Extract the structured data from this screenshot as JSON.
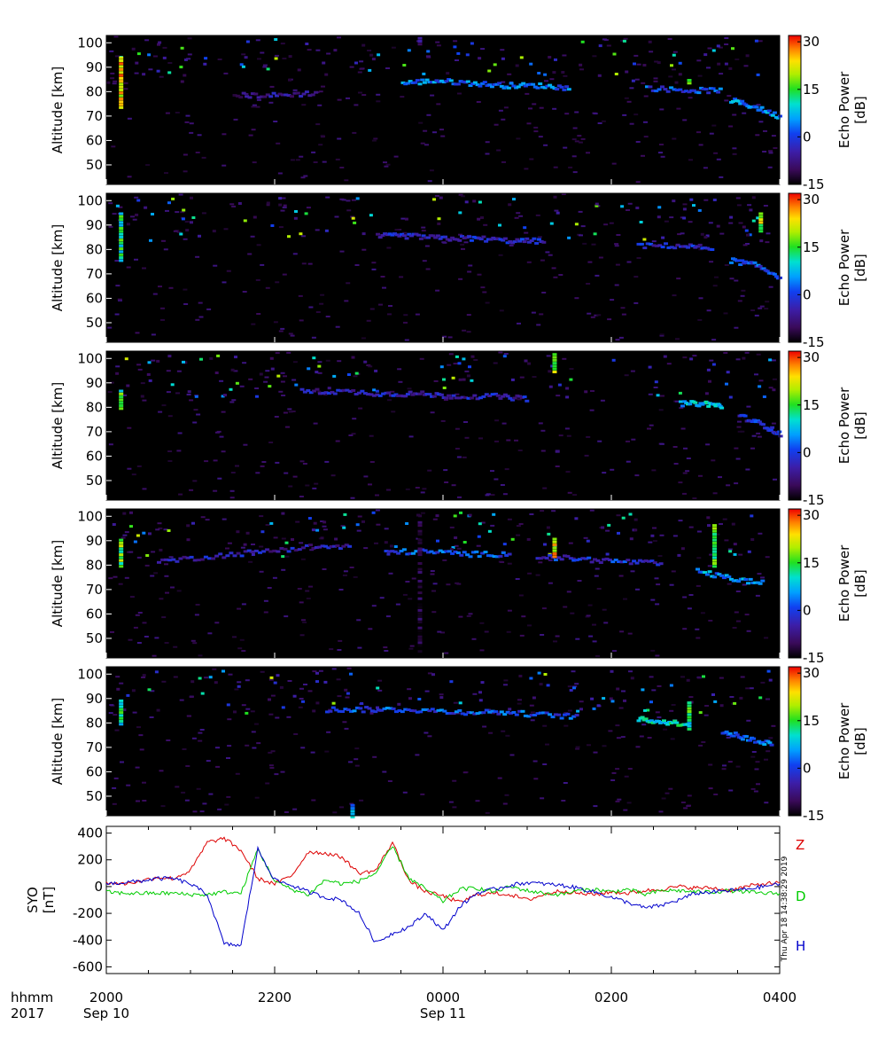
{
  "chart_data": [
    {
      "type": "heatmap",
      "panel": 1,
      "ylabel": "Altitude [km]",
      "yticks": [
        50,
        60,
        70,
        80,
        90,
        100
      ],
      "ylim": [
        42,
        103
      ],
      "colorbar": {
        "label": "Echo Power",
        "unit": "[dB]",
        "range": [
          -15,
          32
        ],
        "ticks": [
          "30",
          "15",
          "0",
          "-15"
        ]
      },
      "echo_layers": [
        {
          "x": [
            21.5,
            22.0,
            22.5
          ],
          "y": [
            79,
            79,
            80
          ],
          "level": -7
        },
        {
          "x": [
            23.5,
            23.9,
            24.3,
            24.7,
            25.1,
            25.5
          ],
          "y": [
            84,
            85,
            84,
            83,
            83,
            82
          ],
          "level": 3
        },
        {
          "x": [
            26.4,
            26.9,
            27.3
          ],
          "y": [
            82,
            81,
            81
          ],
          "level": 1
        },
        {
          "x": [
            27.4,
            27.7,
            28.0
          ],
          "y": [
            77,
            74,
            70
          ],
          "level": 4
        }
      ],
      "strong_echoes": [
        {
          "x": 20.15,
          "y": [
            74,
            95
          ],
          "level": 30
        },
        {
          "x": 23.7,
          "y": [
            100,
            103
          ],
          "level": 0
        },
        {
          "x": 26.9,
          "y": [
            84,
            86
          ],
          "level": 25
        }
      ]
    },
    {
      "type": "heatmap",
      "panel": 2,
      "ylabel": "Altitude [km]",
      "yticks": [
        50,
        60,
        70,
        80,
        90,
        100
      ],
      "ylim": [
        42,
        103
      ],
      "colorbar": {
        "label": "Echo Power",
        "unit": "[dB]",
        "range": [
          -15,
          32
        ],
        "ticks": [
          "30",
          "15",
          "0",
          "-15"
        ]
      },
      "echo_layers": [
        {
          "x": [
            23.2,
            23.6,
            24.0,
            24.4,
            24.8,
            25.2
          ],
          "y": [
            86,
            86,
            85,
            85,
            84,
            84
          ],
          "level": -3
        },
        {
          "x": [
            26.3,
            26.8,
            27.2
          ],
          "y": [
            82,
            82,
            81
          ],
          "level": -3
        },
        {
          "x": [
            27.4,
            27.7,
            28.0
          ],
          "y": [
            76,
            74,
            69
          ],
          "level": 1
        }
      ],
      "strong_echoes": [
        {
          "x": 20.15,
          "y": [
            76,
            96
          ],
          "level": 18
        },
        {
          "x": 27.75,
          "y": [
            88,
            96
          ],
          "level": 25
        }
      ]
    },
    {
      "type": "heatmap",
      "panel": 3,
      "ylabel": "Altitude [km]",
      "yticks": [
        50,
        60,
        70,
        80,
        90,
        100
      ],
      "ylim": [
        42,
        103
      ],
      "colorbar": {
        "label": "Echo Power",
        "unit": "[dB]",
        "range": [
          -15,
          32
        ],
        "ticks": [
          "30",
          "15",
          "0",
          "-15"
        ]
      },
      "echo_layers": [
        {
          "x": [
            22.3,
            22.8,
            23.3,
            23.7,
            24.1,
            24.6,
            25.0
          ],
          "y": [
            87,
            87,
            86,
            86,
            85,
            85,
            84
          ],
          "level": -4
        },
        {
          "x": [
            26.8,
            27.1,
            27.3
          ],
          "y": [
            82,
            82,
            81
          ],
          "level": 8
        },
        {
          "x": [
            27.5,
            27.8,
            28.0
          ],
          "y": [
            77,
            73,
            69
          ],
          "level": -2
        }
      ],
      "strong_echoes": [
        {
          "x": 20.15,
          "y": [
            80,
            88
          ],
          "level": 20
        },
        {
          "x": 25.3,
          "y": [
            95,
            103
          ],
          "level": 25
        }
      ]
    },
    {
      "type": "heatmap",
      "panel": 4,
      "ylabel": "Altitude [km]",
      "yticks": [
        50,
        60,
        70,
        80,
        90,
        100
      ],
      "ylim": [
        42,
        103
      ],
      "colorbar": {
        "label": "Echo Power",
        "unit": "[dB]",
        "range": [
          -15,
          32
        ],
        "ticks": [
          "30",
          "15",
          "0",
          "-15"
        ]
      },
      "echo_layers": [
        {
          "x": [
            20.6,
            21.2,
            21.8,
            22.4,
            22.9
          ],
          "y": [
            82,
            84,
            86,
            88,
            88
          ],
          "level": -5
        },
        {
          "x": [
            23.3,
            23.8,
            24.3,
            24.8
          ],
          "y": [
            86,
            86,
            85,
            85
          ],
          "level": 1
        },
        {
          "x": [
            25.1,
            25.6,
            26.1,
            26.6
          ],
          "y": [
            84,
            83,
            82,
            81
          ],
          "level": -2
        },
        {
          "x": [
            27.0,
            27.4,
            27.8
          ],
          "y": [
            78,
            75,
            73
          ],
          "level": 5
        }
      ],
      "strong_echoes": [
        {
          "x": 20.15,
          "y": [
            80,
            92
          ],
          "level": 22
        },
        {
          "x": 25.3,
          "y": [
            84,
            92
          ],
          "level": 30
        },
        {
          "x": 27.2,
          "y": [
            80,
            98
          ],
          "level": 20
        },
        {
          "x": 23.7,
          "y": [
            44,
            100
          ],
          "level": -8
        }
      ]
    },
    {
      "type": "heatmap",
      "panel": 5,
      "ylabel": "Altitude [km]",
      "yticks": [
        50,
        60,
        70,
        80,
        90,
        100
      ],
      "ylim": [
        42,
        103
      ],
      "colorbar": {
        "label": "Echo Power",
        "unit": "[dB]",
        "range": [
          -15,
          32
        ],
        "ticks": [
          "30",
          "15",
          "0",
          "-15"
        ]
      },
      "echo_layers": [
        {
          "x": [
            22.6,
            23.1,
            23.6,
            24.1,
            24.6,
            25.1,
            25.6
          ],
          "y": [
            86,
            86,
            86,
            85,
            85,
            84,
            83
          ],
          "level": 1
        },
        {
          "x": [
            26.3,
            26.6,
            26.9
          ],
          "y": [
            82,
            81,
            80
          ],
          "level": 10
        },
        {
          "x": [
            27.3,
            27.6,
            27.9
          ],
          "y": [
            77,
            74,
            72
          ],
          "level": 3
        }
      ],
      "strong_echoes": [
        {
          "x": 20.15,
          "y": [
            80,
            90
          ],
          "level": 18
        },
        {
          "x": 26.9,
          "y": [
            78,
            90
          ],
          "level": 18
        },
        {
          "x": 22.9,
          "y": [
            42,
            48
          ],
          "level": 12
        }
      ]
    },
    {
      "type": "line",
      "ylabel": "SYO",
      "yunit": "[nT]",
      "yticks": [
        -600,
        -400,
        -200,
        0,
        200,
        400
      ],
      "ylim": [
        -650,
        450
      ],
      "series": [
        {
          "name": "Z",
          "color": "#dd0000",
          "x": [
            20.0,
            20.2,
            20.4,
            20.6,
            20.8,
            21.0,
            21.2,
            21.4,
            21.6,
            21.8,
            22.0,
            22.2,
            22.4,
            22.6,
            22.8,
            23.0,
            23.2,
            23.4,
            23.6,
            23.8,
            24.0,
            24.2,
            24.4,
            24.6,
            24.8,
            25.0,
            25.2,
            25.4,
            25.6,
            25.8,
            26.0,
            26.2,
            26.4,
            26.6,
            26.8,
            27.0,
            27.2,
            27.4,
            27.6,
            27.8,
            28.0
          ],
          "y": [
            30,
            20,
            40,
            70,
            60,
            120,
            330,
            360,
            270,
            60,
            20,
            80,
            260,
            250,
            220,
            100,
            120,
            330,
            40,
            -40,
            -70,
            -120,
            -60,
            -50,
            -60,
            -100,
            -60,
            -30,
            -50,
            -60,
            -40,
            -50,
            -30,
            -20,
            0,
            -10,
            -10,
            -30,
            0,
            20,
            30
          ]
        },
        {
          "name": "D",
          "color": "#00cc00",
          "x": [
            20.0,
            20.2,
            20.4,
            20.6,
            20.8,
            21.0,
            21.2,
            21.4,
            21.6,
            21.8,
            22.0,
            22.2,
            22.4,
            22.6,
            22.8,
            23.0,
            23.2,
            23.4,
            23.6,
            23.8,
            24.0,
            24.2,
            24.4,
            24.6,
            24.8,
            25.0,
            25.2,
            25.4,
            25.6,
            25.8,
            26.0,
            26.2,
            26.4,
            26.6,
            26.8,
            27.0,
            27.2,
            27.4,
            27.6,
            27.8,
            28.0
          ],
          "y": [
            -40,
            -50,
            -50,
            -50,
            -50,
            -60,
            -60,
            -40,
            -50,
            280,
            40,
            -20,
            -60,
            50,
            20,
            40,
            100,
            300,
            60,
            -20,
            -110,
            -20,
            -10,
            -40,
            0,
            -30,
            -50,
            -60,
            -30,
            -20,
            -40,
            -20,
            -60,
            -30,
            -30,
            -40,
            -40,
            -30,
            -40,
            -50,
            -50
          ]
        },
        {
          "name": "H",
          "color": "#0000cc",
          "x": [
            20.0,
            20.2,
            20.4,
            20.6,
            20.8,
            21.0,
            21.2,
            21.4,
            21.6,
            21.8,
            22.0,
            22.2,
            22.4,
            22.6,
            22.8,
            23.0,
            23.2,
            23.4,
            23.6,
            23.8,
            24.0,
            24.2,
            24.4,
            24.6,
            24.8,
            25.0,
            25.2,
            25.4,
            25.6,
            25.8,
            26.0,
            26.2,
            26.4,
            26.6,
            26.8,
            27.0,
            27.2,
            27.4,
            27.6,
            27.8,
            28.0
          ],
          "y": [
            20,
            30,
            40,
            60,
            60,
            20,
            -60,
            -430,
            -440,
            280,
            50,
            10,
            -40,
            -80,
            -100,
            -200,
            -420,
            -350,
            -300,
            -200,
            -330,
            -150,
            -50,
            -20,
            10,
            30,
            20,
            10,
            -10,
            -40,
            -80,
            -120,
            -160,
            -140,
            -100,
            -50,
            -40,
            -30,
            -20,
            0,
            20
          ]
        }
      ]
    }
  ],
  "xaxis": {
    "xlim": [
      20,
      28
    ],
    "major_ticks": [
      20,
      22,
      24,
      26,
      28
    ],
    "minor_ticks": [
      20.5,
      21,
      21.5,
      22.5,
      23,
      23.5,
      24.5,
      25,
      25.5,
      26.5,
      27,
      27.5
    ],
    "tick_labels": [
      "2000",
      "2200",
      "0000",
      "0200",
      "0400"
    ],
    "date_labels": [
      {
        "x": 20,
        "text": "Sep 10"
      },
      {
        "x": 24,
        "text": "Sep 11"
      }
    ],
    "row_labels": [
      "hhmm",
      "2017"
    ]
  },
  "timestamp": "Thu Apr 18 14:38:29 2019"
}
